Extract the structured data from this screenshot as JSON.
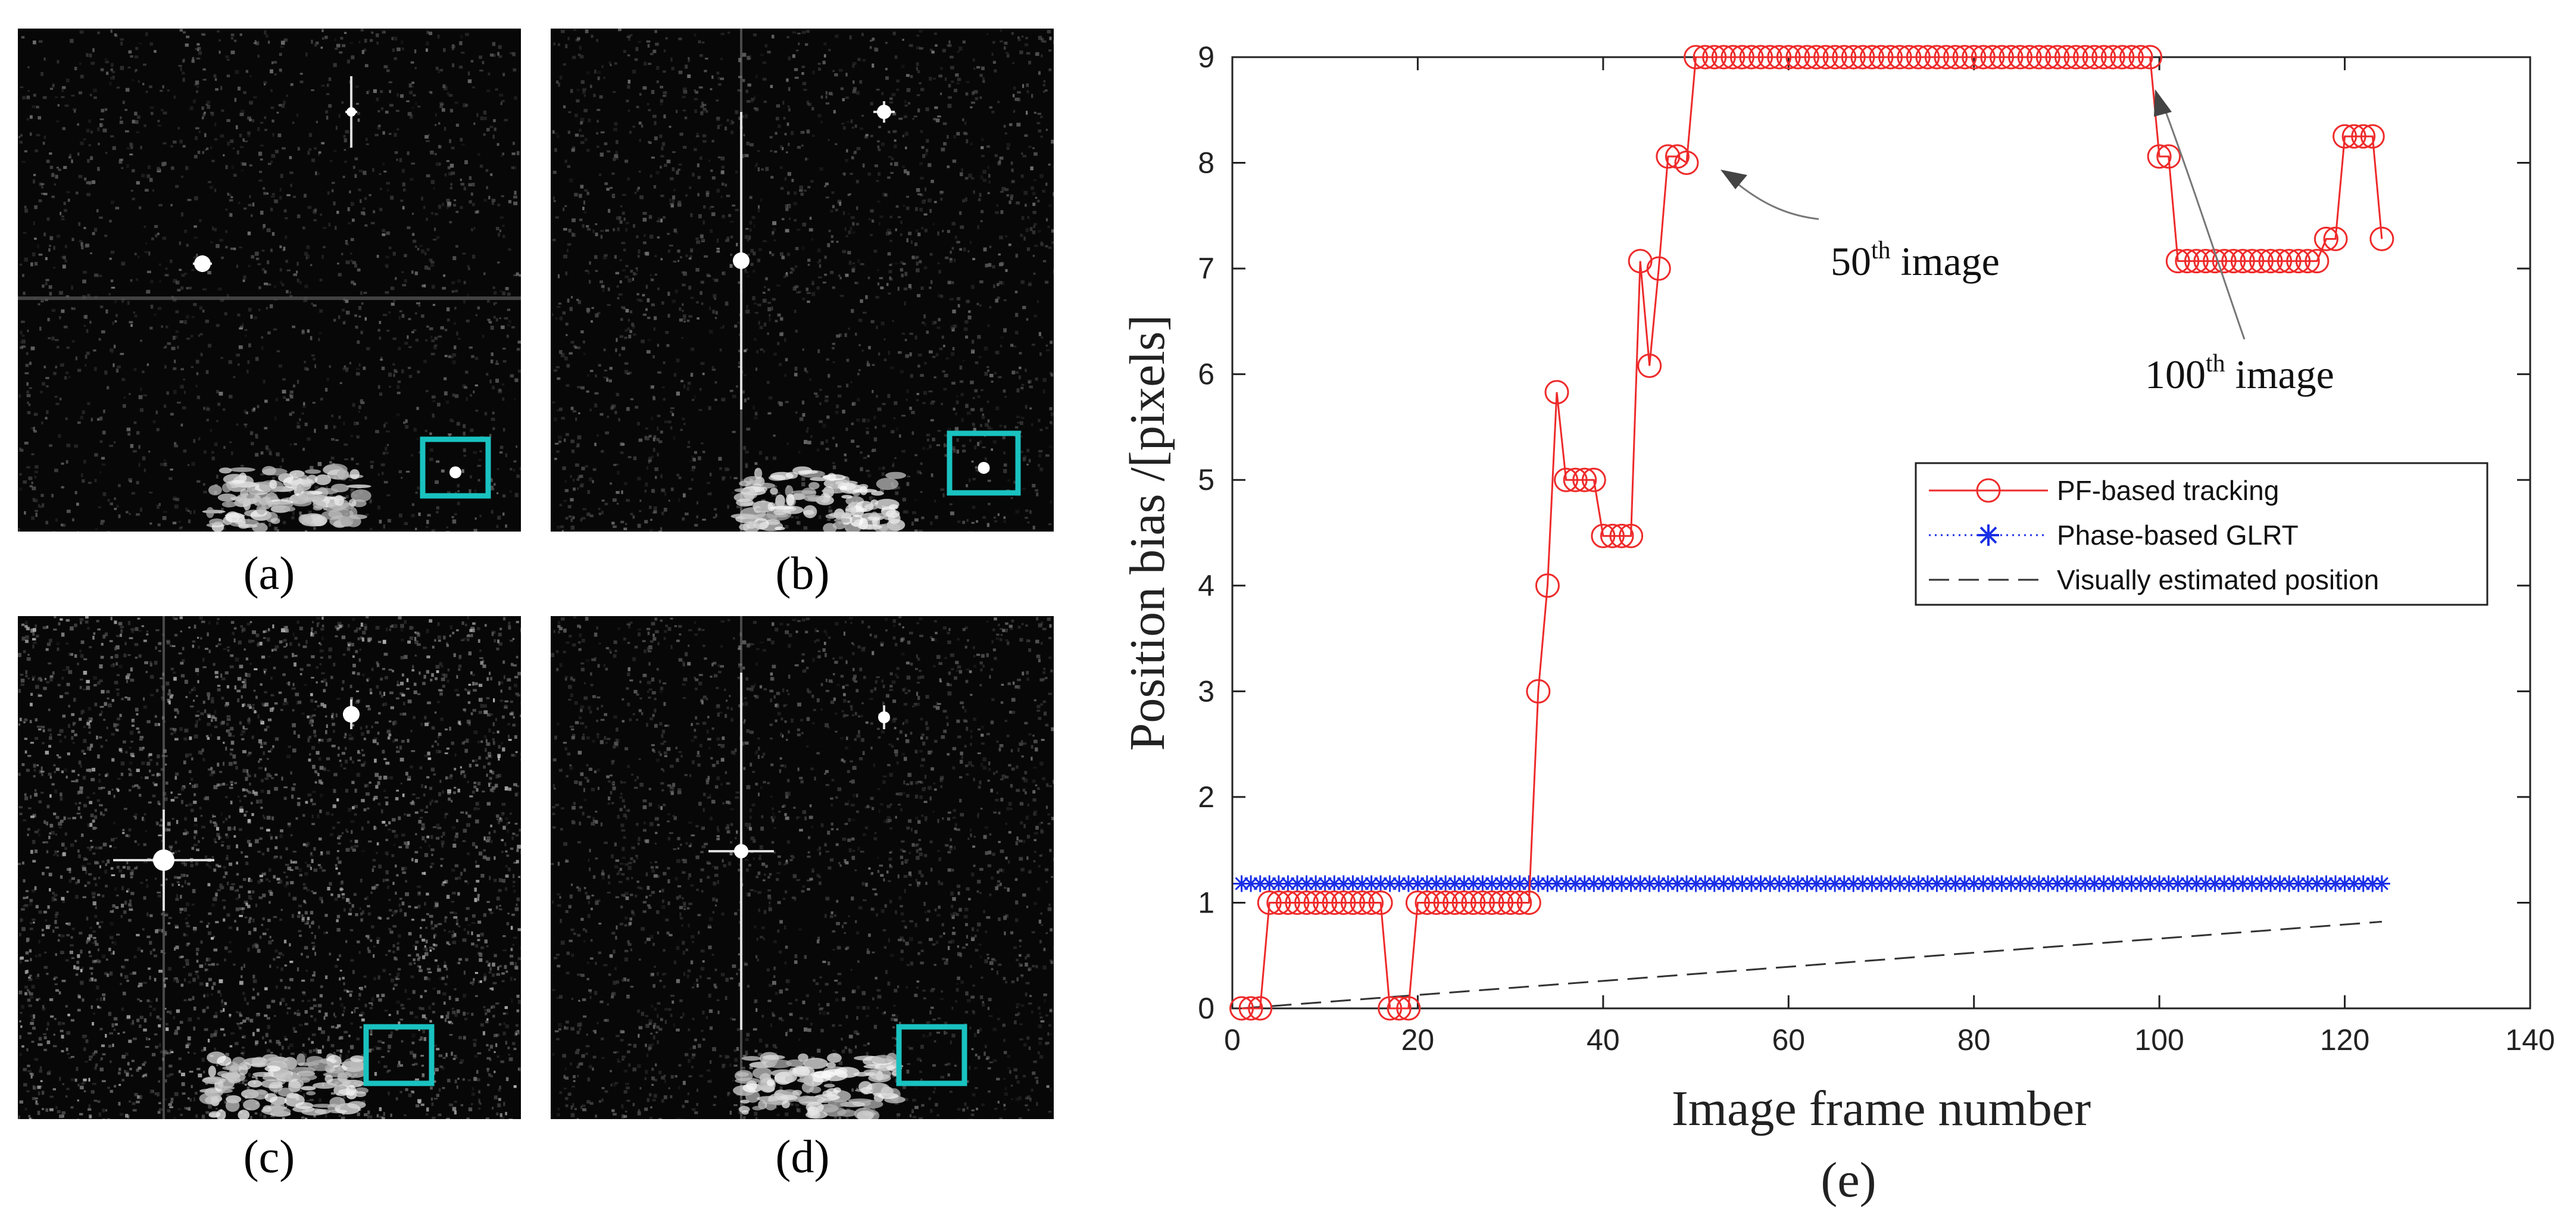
{
  "panels": [
    {
      "id": "a",
      "caption": "(a)",
      "noise": 0.35,
      "box_color": "#19c2c0"
    },
    {
      "id": "b",
      "caption": "(b)",
      "noise": 0.45,
      "box_color": "#19c2c0"
    },
    {
      "id": "c",
      "caption": "(c)",
      "noise": 1.0,
      "box_color": "#19c2c0"
    },
    {
      "id": "d",
      "caption": "(d)",
      "noise": 0.6,
      "box_color": "#19c2c0"
    }
  ],
  "chart_caption": "(e)",
  "chart_data": {
    "type": "line",
    "xlabel": "Image frame number",
    "ylabel": "Position bias /[pixels]",
    "xlim": [
      0,
      140
    ],
    "ylim": [
      0,
      9
    ],
    "xticks": [
      0,
      20,
      40,
      60,
      80,
      100,
      120,
      140
    ],
    "yticks": [
      0,
      1,
      2,
      3,
      4,
      5,
      6,
      7,
      8,
      9
    ],
    "legend_position": "center-right",
    "series": [
      {
        "name": "PF-based tracking",
        "color": "#ee2a2a",
        "marker": "circle",
        "x_start": 1,
        "values": [
          0,
          0,
          0,
          1,
          1,
          1,
          1,
          1,
          1,
          1,
          1,
          1,
          1,
          1,
          1,
          1,
          0,
          0,
          0,
          1,
          1,
          1,
          1,
          1,
          1,
          1,
          1,
          1,
          1,
          1,
          1,
          1,
          3,
          4,
          5.83,
          5,
          5,
          5,
          5,
          4.47,
          4.47,
          4.47,
          4.47,
          7.07,
          6.08,
          7,
          8.06,
          8.06,
          8,
          9,
          9,
          9,
          9,
          9,
          9,
          9,
          9,
          9,
          9,
          9,
          9,
          9,
          9,
          9,
          9,
          9,
          9,
          9,
          9,
          9,
          9,
          9,
          9,
          9,
          9,
          9,
          9,
          9,
          9,
          9,
          9,
          9,
          9,
          9,
          9,
          9,
          9,
          9,
          9,
          9,
          9,
          9,
          9,
          9,
          9,
          9,
          9,
          9,
          9,
          8.06,
          8.06,
          7.07,
          7.07,
          7.07,
          7.07,
          7.07,
          7.07,
          7.07,
          7.07,
          7.07,
          7.07,
          7.07,
          7.07,
          7.07,
          7.07,
          7.07,
          7.07,
          7.28,
          7.28,
          8.25,
          8.25,
          8.25,
          8.25,
          7.28
        ]
      },
      {
        "name": "Phase-based GLRT",
        "color": "#1a2fe6",
        "marker": "asterisk",
        "x_start": 1,
        "constant": 1.18,
        "count": 124
      },
      {
        "name": "Visually estimated position",
        "color": "#333333",
        "marker": "none",
        "x": [
          1,
          124
        ],
        "y": [
          0,
          0.82
        ]
      }
    ],
    "annotations": [
      {
        "base": "50",
        "sup": "th",
        "text": " image",
        "target_x": 50,
        "target_y": 8
      },
      {
        "base": "100",
        "sup": "th",
        "text": " image",
        "target_x": 100,
        "target_y": 9
      }
    ]
  }
}
